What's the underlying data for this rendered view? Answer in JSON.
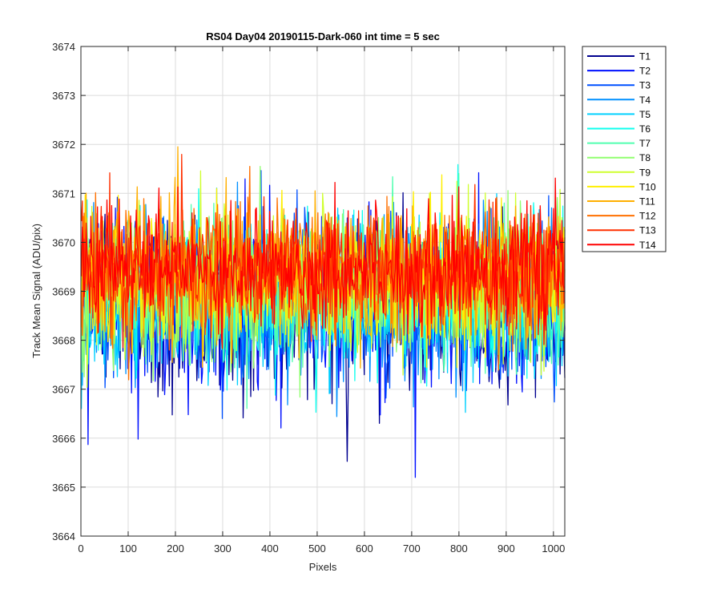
{
  "chart_data": {
    "type": "line",
    "title": "RS04 Day04 20190115-Dark-060 int time = 5 sec",
    "xlabel": "Pixels",
    "ylabel": "Track Mean Signal (ADU/pix)",
    "xlim": [
      0,
      1024
    ],
    "ylim": [
      3664,
      3674
    ],
    "xticks": [
      0,
      100,
      200,
      300,
      400,
      500,
      600,
      700,
      800,
      900,
      1000
    ],
    "yticks": [
      3664,
      3665,
      3666,
      3667,
      3668,
      3669,
      3670,
      3671,
      3672,
      3673,
      3674
    ],
    "grid": true,
    "legend_position": "outside-top-right",
    "noise": {
      "x_start": 1,
      "x_end": 1024,
      "points_per_series": 512,
      "series_mean": [
        3668.6,
        3668.7,
        3668.75,
        3668.8,
        3668.85,
        3668.95,
        3669.0,
        3669.1,
        3669.2,
        3669.3,
        3669.35,
        3669.4,
        3669.45,
        3669.5
      ],
      "series_sd": [
        0.85,
        0.82,
        0.8,
        0.78,
        0.78,
        0.75,
        0.72,
        0.72,
        0.72,
        0.7,
        0.68,
        0.65,
        0.62,
        0.6
      ]
    },
    "series": [
      {
        "name": "T1",
        "color": "#00008f"
      },
      {
        "name": "T2",
        "color": "#0010ff"
      },
      {
        "name": "T3",
        "color": "#0050ff"
      },
      {
        "name": "T4",
        "color": "#0090ff"
      },
      {
        "name": "T5",
        "color": "#00d0ff"
      },
      {
        "name": "T6",
        "color": "#10ffef"
      },
      {
        "name": "T7",
        "color": "#50ffaf"
      },
      {
        "name": "T8",
        "color": "#90ff6f"
      },
      {
        "name": "T9",
        "color": "#cfff30"
      },
      {
        "name": "T10",
        "color": "#ffef00"
      },
      {
        "name": "T11",
        "color": "#ffaf00"
      },
      {
        "name": "T12",
        "color": "#ff7000"
      },
      {
        "name": "T13",
        "color": "#ff3000"
      },
      {
        "name": "T14",
        "color": "#ff0000"
      }
    ]
  }
}
